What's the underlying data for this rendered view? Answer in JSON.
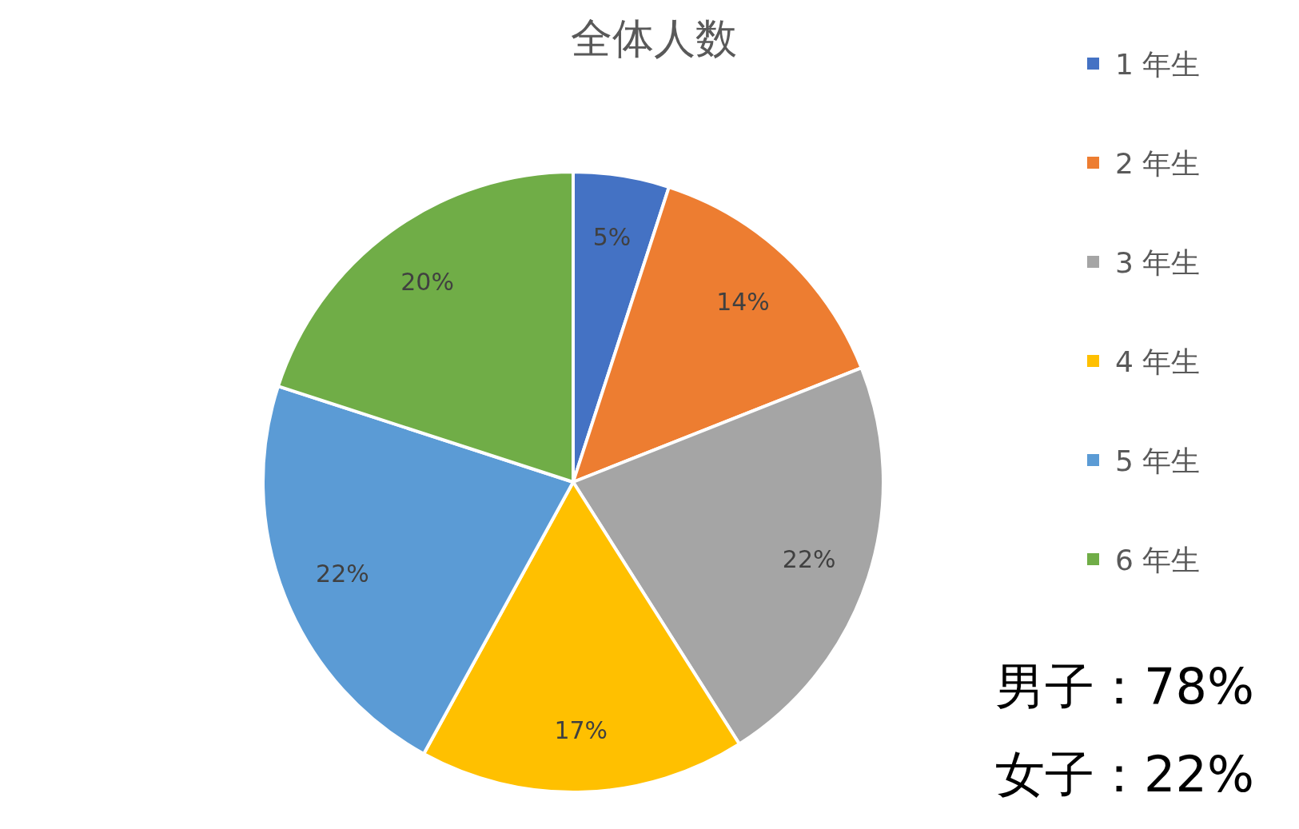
{
  "chart_data": {
    "type": "pie",
    "title": "全体人数",
    "categories": [
      "1 年生",
      "2 年生",
      "3 年生",
      "4 年生",
      "5 年生",
      "6 年生"
    ],
    "values": [
      5,
      14,
      22,
      17,
      22,
      20
    ],
    "colors": [
      "#4472c4",
      "#ed7d31",
      "#a5a5a5",
      "#ffc000",
      "#5b9bd5",
      "#70ad47"
    ],
    "value_labels": [
      "5%",
      "14%",
      "22%",
      "17%",
      "22%",
      "20%"
    ],
    "legend": "right",
    "annotations": [
      "男子：78%",
      "女子：22%"
    ]
  }
}
